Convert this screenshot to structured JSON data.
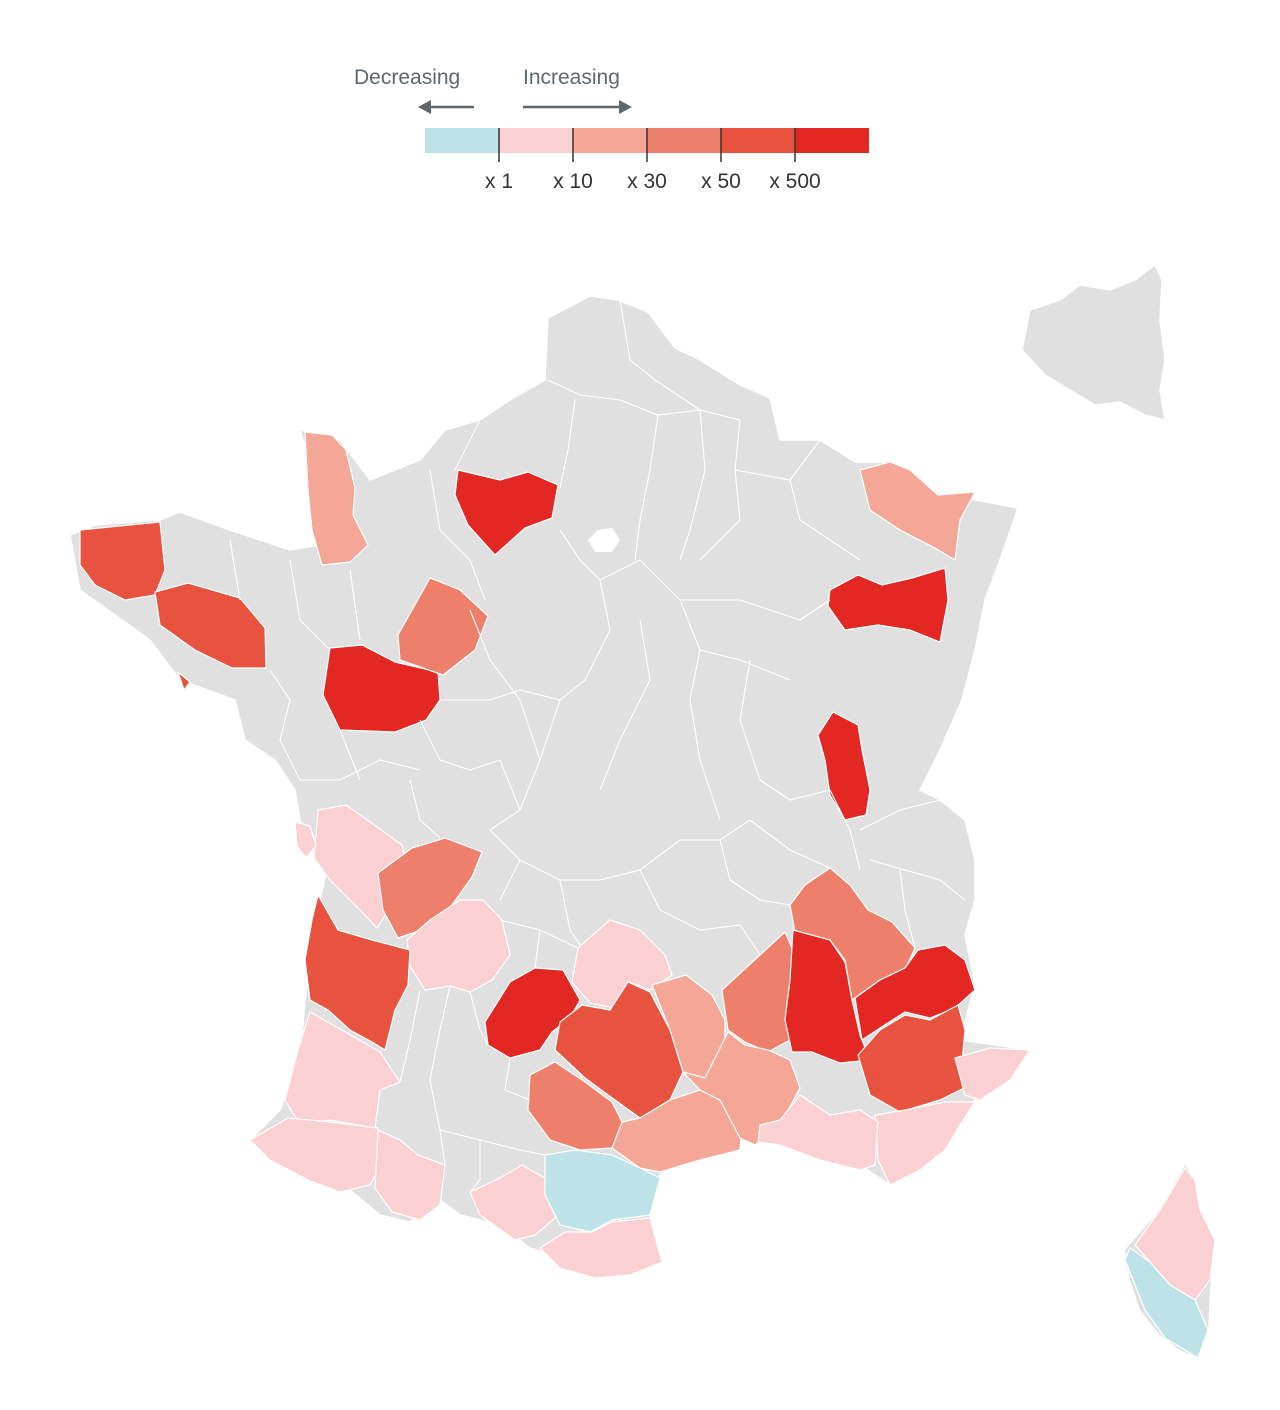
{
  "legend": {
    "decreasing_label": "Decreasing",
    "increasing_label": "Increasing",
    "bins": [
      {
        "color": "#bde3e8",
        "label": "x 1"
      },
      {
        "color": "#fbd0d2",
        "label": "x 10"
      },
      {
        "color": "#f4a697",
        "label": "x 30"
      },
      {
        "color": "#ee7f6a",
        "label": "x 50"
      },
      {
        "color": "#e8533f",
        "label": "x 500"
      },
      {
        "color": "#e32722",
        "label": ""
      }
    ],
    "neutral_color": "#e0e0e0",
    "arrow_color": "#5d6770"
  },
  "map": {
    "subject": "France departments",
    "inset": "Paris region",
    "regions": [
      {
        "name": "Manche",
        "level": 2
      },
      {
        "name": "Finistère",
        "level": 4
      },
      {
        "name": "Morbihan",
        "level": 4
      },
      {
        "name": "Eure",
        "level": 5
      },
      {
        "name": "Sarthe",
        "level": 5
      },
      {
        "name": "Loir-et-Cher",
        "level": 3
      },
      {
        "name": "Moselle",
        "level": 2
      },
      {
        "name": "Vosges",
        "level": 5
      },
      {
        "name": "Jura",
        "level": 5
      },
      {
        "name": "Vienne",
        "level": 1
      },
      {
        "name": "Charente-Maritime",
        "level": 1
      },
      {
        "name": "Haute-Vienne",
        "level": 3
      },
      {
        "name": "Dordogne",
        "level": 1
      },
      {
        "name": "Gironde",
        "level": 4
      },
      {
        "name": "Landes",
        "level": 1
      },
      {
        "name": "Pyrénées-Atlantiques",
        "level": 1
      },
      {
        "name": "Hautes-Pyrénées",
        "level": 1
      },
      {
        "name": "Haute-Garonne",
        "level": 1
      },
      {
        "name": "Lot",
        "level": 5
      },
      {
        "name": "Cantal",
        "level": 1
      },
      {
        "name": "Aveyron",
        "level": 4
      },
      {
        "name": "Lozère",
        "level": 2
      },
      {
        "name": "Tarn",
        "level": 3
      },
      {
        "name": "Hérault",
        "level": 2
      },
      {
        "name": "Aude",
        "level": 0
      },
      {
        "name": "Pyrénées-Orientales",
        "level": 1
      },
      {
        "name": "Ardèche",
        "level": 3
      },
      {
        "name": "Gard",
        "level": 2
      },
      {
        "name": "Isère",
        "level": 3
      },
      {
        "name": "Drôme",
        "level": 5
      },
      {
        "name": "Hautes-Alpes",
        "level": 5
      },
      {
        "name": "Alpes-de-Haute-Provence",
        "level": 4
      },
      {
        "name": "Alpes-Maritimes",
        "level": 1
      },
      {
        "name": "Var",
        "level": 1
      },
      {
        "name": "Bouches-du-Rhône",
        "level": 1
      },
      {
        "name": "Haute-Corse",
        "level": 1
      },
      {
        "name": "Corse-du-Sud",
        "level": 0
      }
    ]
  }
}
